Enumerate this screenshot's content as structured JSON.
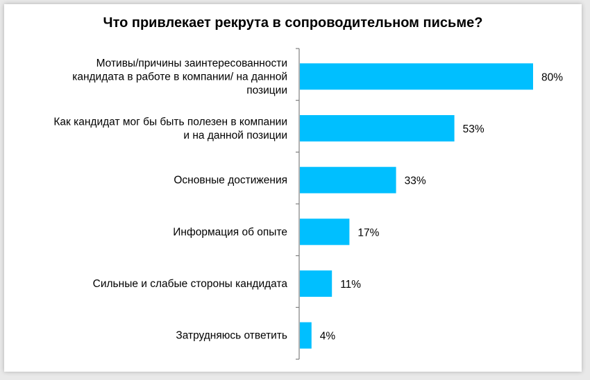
{
  "chart_data": {
    "type": "bar",
    "orientation": "horizontal",
    "title": "Что привлекает рекрута в сопроводительном письме?",
    "categories": [
      [
        "Мотивы/причины заинтересованности",
        "кандидата в работе в компании/ на данной",
        "позиции"
      ],
      [
        "Как кандидат мог бы быть полезен в компании",
        "и на данной позиции"
      ],
      [
        "Основные достижения"
      ],
      [
        "Информация об опыте"
      ],
      [
        "Сильные и слабые стороны кандидата"
      ],
      [
        "Затрудняюсь ответить"
      ]
    ],
    "values": [
      80,
      53,
      33,
      17,
      11,
      4
    ],
    "value_labels": [
      "80%",
      "53%",
      "33%",
      "17%",
      "11%",
      "4%"
    ],
    "xlim": [
      0,
      100
    ],
    "grid": false,
    "legend": "none",
    "bar_color": "#00bfff",
    "axis_color": "#7f7f7f"
  }
}
